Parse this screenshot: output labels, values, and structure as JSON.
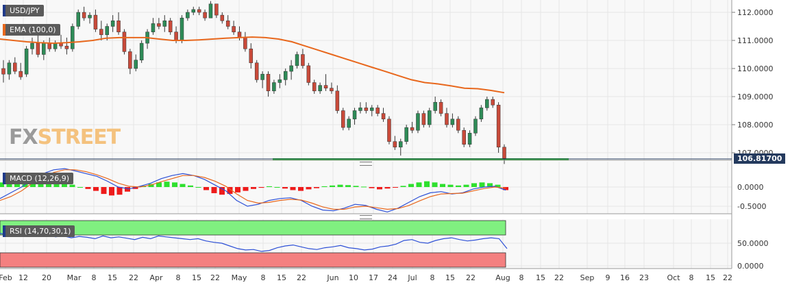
{
  "chart_data": {
    "type": "candlestick",
    "instrument": "USD/JPY",
    "last_price_label": "106.81700",
    "price_axis_ticks": [
      "112.0000",
      "111.0000",
      "110.0000",
      "109.0000",
      "108.0000",
      "107.0000"
    ],
    "ylim": [
      106.75,
      112.25
    ],
    "x_axis_labels": [
      "Feb",
      "12",
      "20",
      "Mar",
      "8",
      "15",
      "22",
      "Apr",
      "8",
      "15",
      "22",
      "May",
      "8",
      "15",
      "22",
      "Jun",
      "10",
      "17",
      "24",
      "Jul",
      "8",
      "15",
      "22",
      "Aug",
      "8",
      "15",
      "22",
      "Sep",
      "9",
      "16",
      "23",
      "Oct",
      "8",
      "15",
      "22"
    ],
    "support_level": 106.78,
    "indicators": {
      "ema": {
        "label": "EMA (100,0)",
        "color": "#e8671c",
        "values": [
          111.05,
          111.0,
          110.95,
          110.92,
          110.9,
          110.92,
          110.95,
          111.0,
          111.08,
          111.1,
          111.1,
          111.1,
          111.05,
          111.0,
          111.0,
          111.02,
          111.05,
          111.08,
          111.1,
          111.12,
          111.1,
          111.05,
          110.95,
          110.8,
          110.65,
          110.5,
          110.35,
          110.2,
          110.05,
          109.9,
          109.75,
          109.6,
          109.5,
          109.45,
          109.38,
          109.3,
          109.28,
          109.22,
          109.14
        ]
      },
      "macd": {
        "label": "MACD (12,26,9)",
        "axis_ticks": [
          "0.0000",
          "-0.5000"
        ],
        "ylim": [
          -0.75,
          0.55
        ]
      },
      "rsi": {
        "label": "RSI (14,70,30,1)",
        "axis_ticks": [
          "50.0000",
          "0.0000"
        ],
        "overbought": 70,
        "oversold": 30,
        "ylim": [
          0,
          100
        ]
      }
    },
    "candles": [
      {
        "o": 110.0,
        "h": 110.3,
        "l": 109.5,
        "c": 109.8
      },
      {
        "o": 109.8,
        "h": 110.3,
        "l": 109.6,
        "c": 110.2
      },
      {
        "o": 110.2,
        "h": 110.4,
        "l": 109.8,
        "c": 109.9
      },
      {
        "o": 109.9,
        "h": 110.2,
        "l": 109.6,
        "c": 109.7
      },
      {
        "o": 109.8,
        "h": 110.8,
        "l": 109.7,
        "c": 110.7
      },
      {
        "o": 110.7,
        "h": 111.1,
        "l": 110.5,
        "c": 110.9
      },
      {
        "o": 110.9,
        "h": 111.2,
        "l": 110.4,
        "c": 110.5
      },
      {
        "o": 110.5,
        "h": 111.0,
        "l": 110.3,
        "c": 110.9
      },
      {
        "o": 110.9,
        "h": 111.1,
        "l": 110.6,
        "c": 110.7
      },
      {
        "o": 110.7,
        "h": 111.0,
        "l": 110.6,
        "c": 110.9
      },
      {
        "o": 110.9,
        "h": 111.2,
        "l": 110.7,
        "c": 110.8
      },
      {
        "o": 110.8,
        "h": 111.1,
        "l": 110.5,
        "c": 110.7
      },
      {
        "o": 110.7,
        "h": 111.6,
        "l": 110.6,
        "c": 111.5
      },
      {
        "o": 111.5,
        "h": 112.1,
        "l": 111.4,
        "c": 112.0
      },
      {
        "o": 112.0,
        "h": 112.2,
        "l": 111.7,
        "c": 111.8
      },
      {
        "o": 111.8,
        "h": 112.0,
        "l": 111.6,
        "c": 111.9
      },
      {
        "o": 111.9,
        "h": 112.1,
        "l": 111.3,
        "c": 111.4
      },
      {
        "o": 111.4,
        "h": 111.7,
        "l": 111.0,
        "c": 111.2
      },
      {
        "o": 111.2,
        "h": 111.6,
        "l": 111.0,
        "c": 111.5
      },
      {
        "o": 111.5,
        "h": 111.9,
        "l": 111.3,
        "c": 111.7
      },
      {
        "o": 111.7,
        "h": 112.0,
        "l": 111.2,
        "c": 111.3
      },
      {
        "o": 111.3,
        "h": 111.4,
        "l": 110.5,
        "c": 110.6
      },
      {
        "o": 110.6,
        "h": 110.7,
        "l": 109.8,
        "c": 110.0
      },
      {
        "o": 110.0,
        "h": 110.5,
        "l": 109.9,
        "c": 110.3
      },
      {
        "o": 110.3,
        "h": 111.0,
        "l": 110.2,
        "c": 110.9
      },
      {
        "o": 110.9,
        "h": 111.4,
        "l": 110.7,
        "c": 111.3
      },
      {
        "o": 111.3,
        "h": 111.8,
        "l": 111.2,
        "c": 111.6
      },
      {
        "o": 111.6,
        "h": 111.8,
        "l": 111.4,
        "c": 111.5
      },
      {
        "o": 111.5,
        "h": 111.9,
        "l": 111.3,
        "c": 111.7
      },
      {
        "o": 111.7,
        "h": 111.8,
        "l": 111.2,
        "c": 111.3
      },
      {
        "o": 111.3,
        "h": 111.5,
        "l": 110.9,
        "c": 111.0
      },
      {
        "o": 111.0,
        "h": 111.9,
        "l": 110.9,
        "c": 111.8
      },
      {
        "o": 111.8,
        "h": 112.1,
        "l": 111.7,
        "c": 112.0
      },
      {
        "o": 112.0,
        "h": 112.2,
        "l": 111.9,
        "c": 112.1
      },
      {
        "o": 112.1,
        "h": 112.2,
        "l": 111.9,
        "c": 112.0
      },
      {
        "o": 112.0,
        "h": 112.1,
        "l": 111.7,
        "c": 111.8
      },
      {
        "o": 111.8,
        "h": 112.4,
        "l": 111.8,
        "c": 112.3
      },
      {
        "o": 112.3,
        "h": 112.3,
        "l": 111.8,
        "c": 111.9
      },
      {
        "o": 111.9,
        "h": 112.0,
        "l": 111.6,
        "c": 111.7
      },
      {
        "o": 111.7,
        "h": 111.9,
        "l": 111.4,
        "c": 111.5
      },
      {
        "o": 111.5,
        "h": 111.7,
        "l": 111.2,
        "c": 111.3
      },
      {
        "o": 111.3,
        "h": 111.5,
        "l": 111.0,
        "c": 111.1
      },
      {
        "o": 111.1,
        "h": 111.3,
        "l": 110.6,
        "c": 110.7
      },
      {
        "o": 110.7,
        "h": 110.9,
        "l": 110.0,
        "c": 110.2
      },
      {
        "o": 110.2,
        "h": 110.3,
        "l": 109.5,
        "c": 109.6
      },
      {
        "o": 109.6,
        "h": 109.9,
        "l": 109.3,
        "c": 109.8
      },
      {
        "o": 109.8,
        "h": 109.9,
        "l": 109.0,
        "c": 109.2
      },
      {
        "o": 109.2,
        "h": 109.6,
        "l": 109.1,
        "c": 109.5
      },
      {
        "o": 109.5,
        "h": 109.8,
        "l": 109.3,
        "c": 109.6
      },
      {
        "o": 109.6,
        "h": 110.0,
        "l": 109.4,
        "c": 109.9
      },
      {
        "o": 109.9,
        "h": 110.3,
        "l": 109.6,
        "c": 110.1
      },
      {
        "o": 110.1,
        "h": 110.6,
        "l": 110.0,
        "c": 110.5
      },
      {
        "o": 110.5,
        "h": 110.7,
        "l": 110.0,
        "c": 110.1
      },
      {
        "o": 110.1,
        "h": 110.2,
        "l": 109.4,
        "c": 109.5
      },
      {
        "o": 109.5,
        "h": 109.6,
        "l": 109.1,
        "c": 109.2
      },
      {
        "o": 109.2,
        "h": 109.5,
        "l": 109.1,
        "c": 109.4
      },
      {
        "o": 109.4,
        "h": 109.8,
        "l": 109.2,
        "c": 109.3
      },
      {
        "o": 109.3,
        "h": 109.5,
        "l": 109.1,
        "c": 109.2
      },
      {
        "o": 109.2,
        "h": 109.4,
        "l": 108.4,
        "c": 108.5
      },
      {
        "o": 108.5,
        "h": 108.6,
        "l": 107.8,
        "c": 107.9
      },
      {
        "o": 107.9,
        "h": 108.3,
        "l": 107.8,
        "c": 108.2
      },
      {
        "o": 108.2,
        "h": 108.6,
        "l": 108.0,
        "c": 108.5
      },
      {
        "o": 108.5,
        "h": 108.8,
        "l": 108.4,
        "c": 108.6
      },
      {
        "o": 108.6,
        "h": 108.8,
        "l": 108.4,
        "c": 108.5
      },
      {
        "o": 108.5,
        "h": 108.7,
        "l": 108.3,
        "c": 108.6
      },
      {
        "o": 108.6,
        "h": 108.7,
        "l": 108.3,
        "c": 108.4
      },
      {
        "o": 108.4,
        "h": 108.6,
        "l": 108.1,
        "c": 108.2
      },
      {
        "o": 108.2,
        "h": 108.3,
        "l": 107.3,
        "c": 107.4
      },
      {
        "o": 107.4,
        "h": 107.6,
        "l": 107.1,
        "c": 107.2
      },
      {
        "o": 107.2,
        "h": 107.5,
        "l": 106.9,
        "c": 107.4
      },
      {
        "o": 107.4,
        "h": 108.0,
        "l": 107.3,
        "c": 107.9
      },
      {
        "o": 107.9,
        "h": 108.1,
        "l": 107.7,
        "c": 107.8
      },
      {
        "o": 107.8,
        "h": 108.5,
        "l": 107.7,
        "c": 108.4
      },
      {
        "o": 108.4,
        "h": 108.5,
        "l": 107.9,
        "c": 108.0
      },
      {
        "o": 108.0,
        "h": 108.6,
        "l": 107.9,
        "c": 108.5
      },
      {
        "o": 108.5,
        "h": 109.0,
        "l": 108.4,
        "c": 108.8
      },
      {
        "o": 108.8,
        "h": 108.9,
        "l": 108.3,
        "c": 108.4
      },
      {
        "o": 108.4,
        "h": 108.6,
        "l": 107.9,
        "c": 108.0
      },
      {
        "o": 108.0,
        "h": 108.4,
        "l": 107.9,
        "c": 108.2
      },
      {
        "o": 108.2,
        "h": 108.3,
        "l": 107.7,
        "c": 107.8
      },
      {
        "o": 107.8,
        "h": 107.9,
        "l": 107.2,
        "c": 107.3
      },
      {
        "o": 107.3,
        "h": 107.8,
        "l": 107.2,
        "c": 107.7
      },
      {
        "o": 107.7,
        "h": 108.3,
        "l": 107.6,
        "c": 108.2
      },
      {
        "o": 108.2,
        "h": 108.7,
        "l": 108.1,
        "c": 108.6
      },
      {
        "o": 108.6,
        "h": 109.0,
        "l": 108.5,
        "c": 108.9
      },
      {
        "o": 108.9,
        "h": 109.0,
        "l": 108.6,
        "c": 108.7
      },
      {
        "o": 108.7,
        "h": 108.8,
        "l": 107.0,
        "c": 107.2
      },
      {
        "o": 107.2,
        "h": 107.3,
        "l": 106.6,
        "c": 106.8
      }
    ],
    "macd_hist": [
      0.12,
      0.15,
      0.2,
      0.22,
      0.25,
      0.24,
      0.22,
      0.18,
      0.12,
      0.06,
      0.0,
      -0.05,
      -0.1,
      -0.18,
      -0.22,
      -0.2,
      -0.12,
      -0.05,
      0.03,
      0.08,
      0.12,
      0.14,
      0.12,
      0.08,
      0.04,
      0.0,
      -0.08,
      -0.16,
      -0.2,
      -0.18,
      -0.14,
      -0.1,
      -0.05,
      -0.02,
      0.02,
      0.0,
      -0.04,
      -0.08,
      -0.1,
      -0.06,
      -0.03,
      0.02,
      0.04,
      0.06,
      0.05,
      0.03,
      0.01,
      -0.03,
      -0.06,
      -0.04,
      -0.01,
      0.03,
      0.08,
      0.12,
      0.15,
      0.12,
      0.08,
      0.06,
      0.04,
      0.06,
      0.1,
      0.12,
      0.1,
      0.06,
      -0.08
    ],
    "macd_line": [
      -0.3,
      -0.15,
      0.0,
      0.2,
      0.35,
      0.45,
      0.48,
      0.42,
      0.35,
      0.28,
      0.15,
      0.0,
      -0.05,
      0.02,
      0.1,
      0.22,
      0.3,
      0.35,
      0.3,
      0.2,
      0.05,
      -0.1,
      -0.35,
      -0.5,
      -0.45,
      -0.35,
      -0.3,
      -0.28,
      -0.35,
      -0.5,
      -0.6,
      -0.62,
      -0.55,
      -0.45,
      -0.48,
      -0.58,
      -0.65,
      -0.55,
      -0.4,
      -0.25,
      -0.15,
      -0.12,
      -0.18,
      -0.15,
      -0.05,
      0.0,
      0.02,
      -0.08
    ],
    "signal_line": [
      -0.35,
      -0.25,
      -0.1,
      0.1,
      0.25,
      0.38,
      0.45,
      0.45,
      0.4,
      0.32,
      0.22,
      0.1,
      0.02,
      0.0,
      0.05,
      0.14,
      0.22,
      0.3,
      0.3,
      0.25,
      0.15,
      0.02,
      -0.18,
      -0.35,
      -0.42,
      -0.4,
      -0.35,
      -0.32,
      -0.34,
      -0.42,
      -0.52,
      -0.58,
      -0.58,
      -0.52,
      -0.5,
      -0.54,
      -0.58,
      -0.56,
      -0.48,
      -0.36,
      -0.25,
      -0.18,
      -0.17,
      -0.16,
      -0.1,
      -0.04,
      0.0,
      -0.03
    ],
    "rsi_values": [
      72,
      68,
      74,
      70,
      66,
      72,
      70,
      64,
      66,
      62,
      65,
      63,
      60,
      66,
      62,
      64,
      61,
      58,
      63,
      60,
      66,
      64,
      62,
      60,
      58,
      60,
      55,
      52,
      50,
      44,
      38,
      35,
      36,
      32,
      34,
      40,
      44,
      46,
      42,
      38,
      36,
      40,
      42,
      45,
      40,
      38,
      35,
      37,
      42,
      44,
      48,
      56,
      58,
      52,
      50,
      56,
      60,
      62,
      58,
      55,
      57,
      60,
      62,
      60,
      38
    ]
  }
}
